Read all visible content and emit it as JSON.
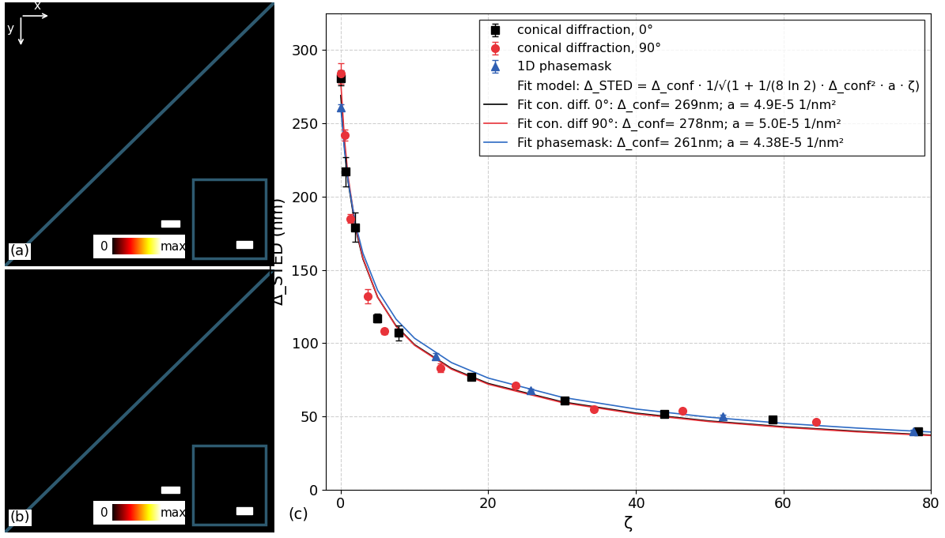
{
  "panels": [
    {
      "label": "(a)",
      "colorbar_labels": [
        "0",
        "max"
      ],
      "axes_indicator": [
        "x",
        "y"
      ]
    },
    {
      "label": "(b)",
      "colorbar_labels": [
        "0",
        "max"
      ]
    }
  ],
  "chart_data": {
    "type": "scatter",
    "panel_label": "(c)",
    "x_label": "ζ",
    "y_label": "Δ_STED (nm)",
    "xlim": [
      -2,
      80
    ],
    "xticks": [
      0,
      20,
      40,
      60,
      80
    ],
    "ylim": [
      0,
      325
    ],
    "yticks": [
      0,
      50,
      100,
      150,
      200,
      250,
      300
    ],
    "grid": true,
    "legend": "upper right",
    "annotations": [
      "Fit model: Δ_STED = Δ_conf · 1/√(1 + 1/(8 ln 2) · Δ_conf² · a · ζ)"
    ],
    "series": [
      {
        "name": "conical diffraction, 0°",
        "type": "scatter",
        "color": "#000000",
        "marker": "square",
        "x": [
          0,
          0.7,
          1.9,
          4.9,
          7.8,
          17.7,
          30.3,
          43.9,
          58.5,
          78.3
        ],
        "values": [
          281,
          217,
          179,
          117,
          107,
          77,
          61,
          51.5,
          48,
          40
        ],
        "errors": [
          5,
          10,
          10,
          3,
          5,
          2,
          2,
          1,
          1,
          1
        ]
      },
      {
        "name": "conical diffraction, 90°",
        "type": "scatter",
        "color": "#e8333a",
        "marker": "circle",
        "x": [
          0,
          0.5,
          1.3,
          3.7,
          5.9,
          13.5,
          23.7,
          34.3,
          46.3,
          64.4
        ],
        "values": [
          284,
          242,
          185,
          132,
          108,
          83,
          71,
          55,
          54,
          46
        ],
        "errors": [
          7,
          4,
          3,
          5,
          2,
          3,
          1,
          2,
          1,
          1
        ]
      },
      {
        "name": "1D phasemask",
        "type": "scatter",
        "color": "#2f5fb3",
        "marker": "triangle",
        "x": [
          0,
          12.9,
          25.7,
          51.8,
          77.6
        ],
        "values": [
          261,
          91,
          68,
          50,
          40
        ],
        "errors": [
          2,
          2,
          1,
          1,
          1
        ]
      },
      {
        "name": "Fit con. diff. 0°: Δ_conf= 269nm; a = 4.9E-5 1/nm²",
        "type": "line",
        "color": "#000000",
        "line_style": "solid",
        "x": [
          0,
          0.5,
          1,
          2,
          3,
          5,
          7.5,
          10,
          15,
          20,
          30,
          40,
          50,
          60,
          70,
          80
        ],
        "values": [
          269,
          234.2,
          210.1,
          178.2,
          157.5,
          131.3,
          111.7,
          98.9,
          82.7,
          72.4,
          59.9,
          52.2,
          46.8,
          42.9,
          39.8,
          37.2
        ]
      },
      {
        "name": "Fit con. diff 90°: Δ_conf= 278nm; a = 5.0E-5 1/nm²",
        "type": "line",
        "color": "#e8333a",
        "line_style": "solid",
        "x": [
          0,
          0.5,
          1,
          2,
          3,
          5,
          7.5,
          10,
          15,
          20,
          30,
          40,
          50,
          60,
          70,
          80
        ],
        "values": [
          278,
          239.4,
          213.4,
          179.7,
          158.1,
          131.3,
          111.4,
          98.5,
          82.2,
          71.9,
          59.4,
          51.7,
          46.4,
          42.5,
          39.4,
          36.9
        ]
      },
      {
        "name": "Fit phasemask: Δ_conf= 261nm; a = 4.38E-5 1/nm²",
        "type": "line",
        "color": "#2e6bc4",
        "line_style": "solid",
        "x": [
          0,
          0.5,
          1,
          2,
          3,
          5,
          7.5,
          10,
          15,
          20,
          30,
          40,
          50,
          60,
          70,
          80
        ],
        "values": [
          261,
          231.7,
          210.5,
          181.1,
          161.4,
          135.9,
          116.3,
          103.3,
          86.7,
          76.1,
          63.0,
          55.0,
          49.4,
          45.2,
          42.0,
          39.3
        ]
      }
    ]
  }
}
